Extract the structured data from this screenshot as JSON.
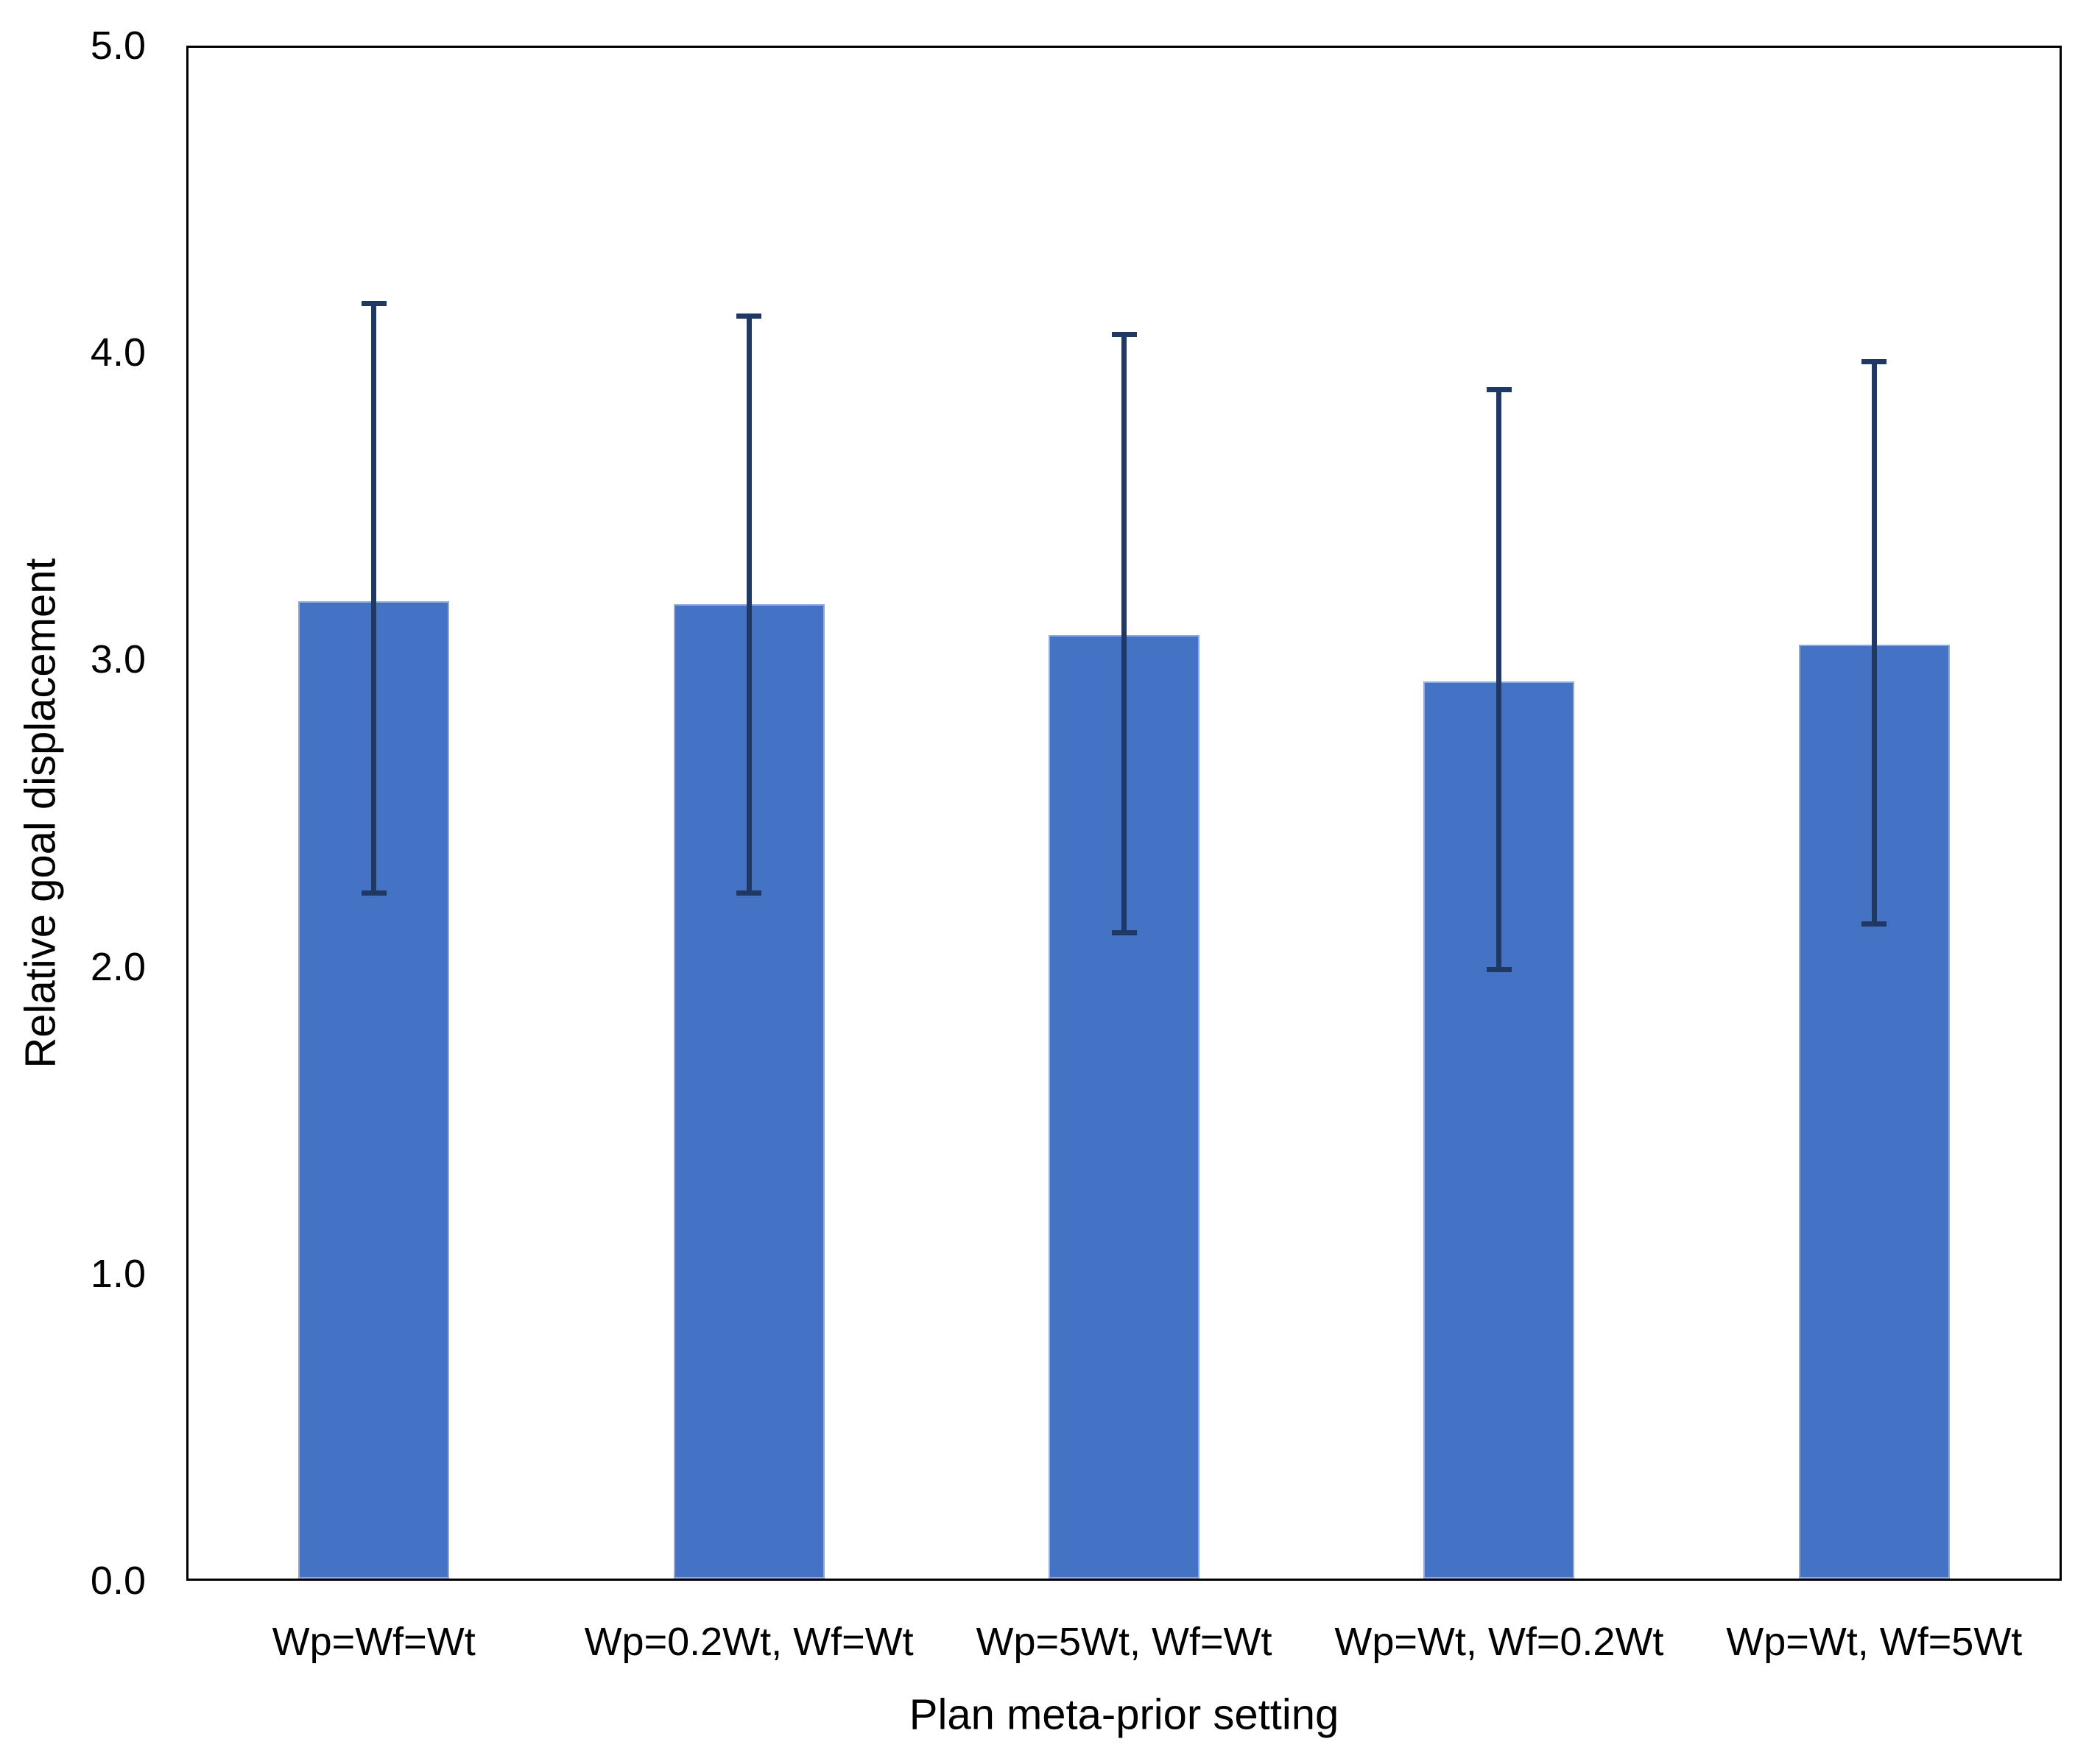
{
  "chart_data": {
    "type": "bar",
    "title": "",
    "xlabel": "Plan meta-prior setting",
    "ylabel": "Relative goal displacement",
    "ylim": [
      0.0,
      5.0
    ],
    "ytick_values": [
      0,
      1,
      2,
      3,
      4,
      5
    ],
    "ytick_labels": [
      "0.0",
      "1.0",
      "2.0",
      "3.0",
      "4.0",
      "5.0"
    ],
    "grid": false,
    "legend_position": "none",
    "categories": [
      "Wp=Wf=Wt",
      "Wp=0.2Wt, Wf=Wt",
      "Wp=5Wt, Wf=Wt",
      "Wp=Wt, Wf=0.2Wt",
      "Wp=Wt, Wf=5Wt"
    ],
    "series": [
      {
        "name": "Relative goal displacement",
        "values": [
          3.19,
          3.18,
          3.08,
          2.93,
          3.05
        ],
        "error_bar_upper": [
          4.16,
          4.12,
          4.06,
          3.88,
          3.97
        ],
        "error_bar_lower": [
          2.24,
          2.24,
          2.11,
          1.99,
          2.14
        ]
      }
    ],
    "colors": {
      "bar_fill": "#4472c4",
      "bar_border": "#8faadc",
      "error_bar": "#1f3864",
      "frame": "#000000",
      "text": "#000000",
      "background": "#ffffff"
    }
  }
}
